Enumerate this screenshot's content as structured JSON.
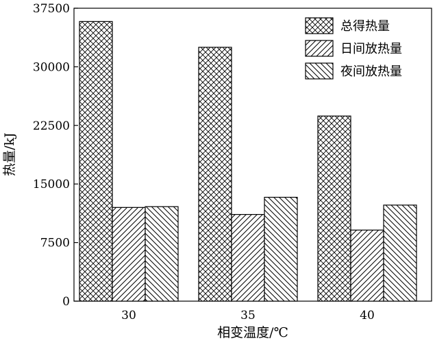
{
  "chart_data": {
    "type": "bar",
    "categories": [
      "30",
      "35",
      "40"
    ],
    "series": [
      {
        "name": "总得热量",
        "pattern": "crosshatch",
        "values": [
          35800,
          32500,
          23700
        ]
      },
      {
        "name": "日间放热量",
        "pattern": "forward-diagonal",
        "values": [
          12000,
          11100,
          9100
        ]
      },
      {
        "name": "夜间放热量",
        "pattern": "backward-diagonal",
        "values": [
          12100,
          13300,
          12300
        ]
      }
    ],
    "xlabel": "相变温度/℃",
    "ylabel": "热量/kJ",
    "ylim": [
      0,
      37500
    ],
    "yticks": [
      0,
      7500,
      15000,
      22500,
      30000,
      37500
    ],
    "grid": false,
    "legend_position": "top-right"
  }
}
